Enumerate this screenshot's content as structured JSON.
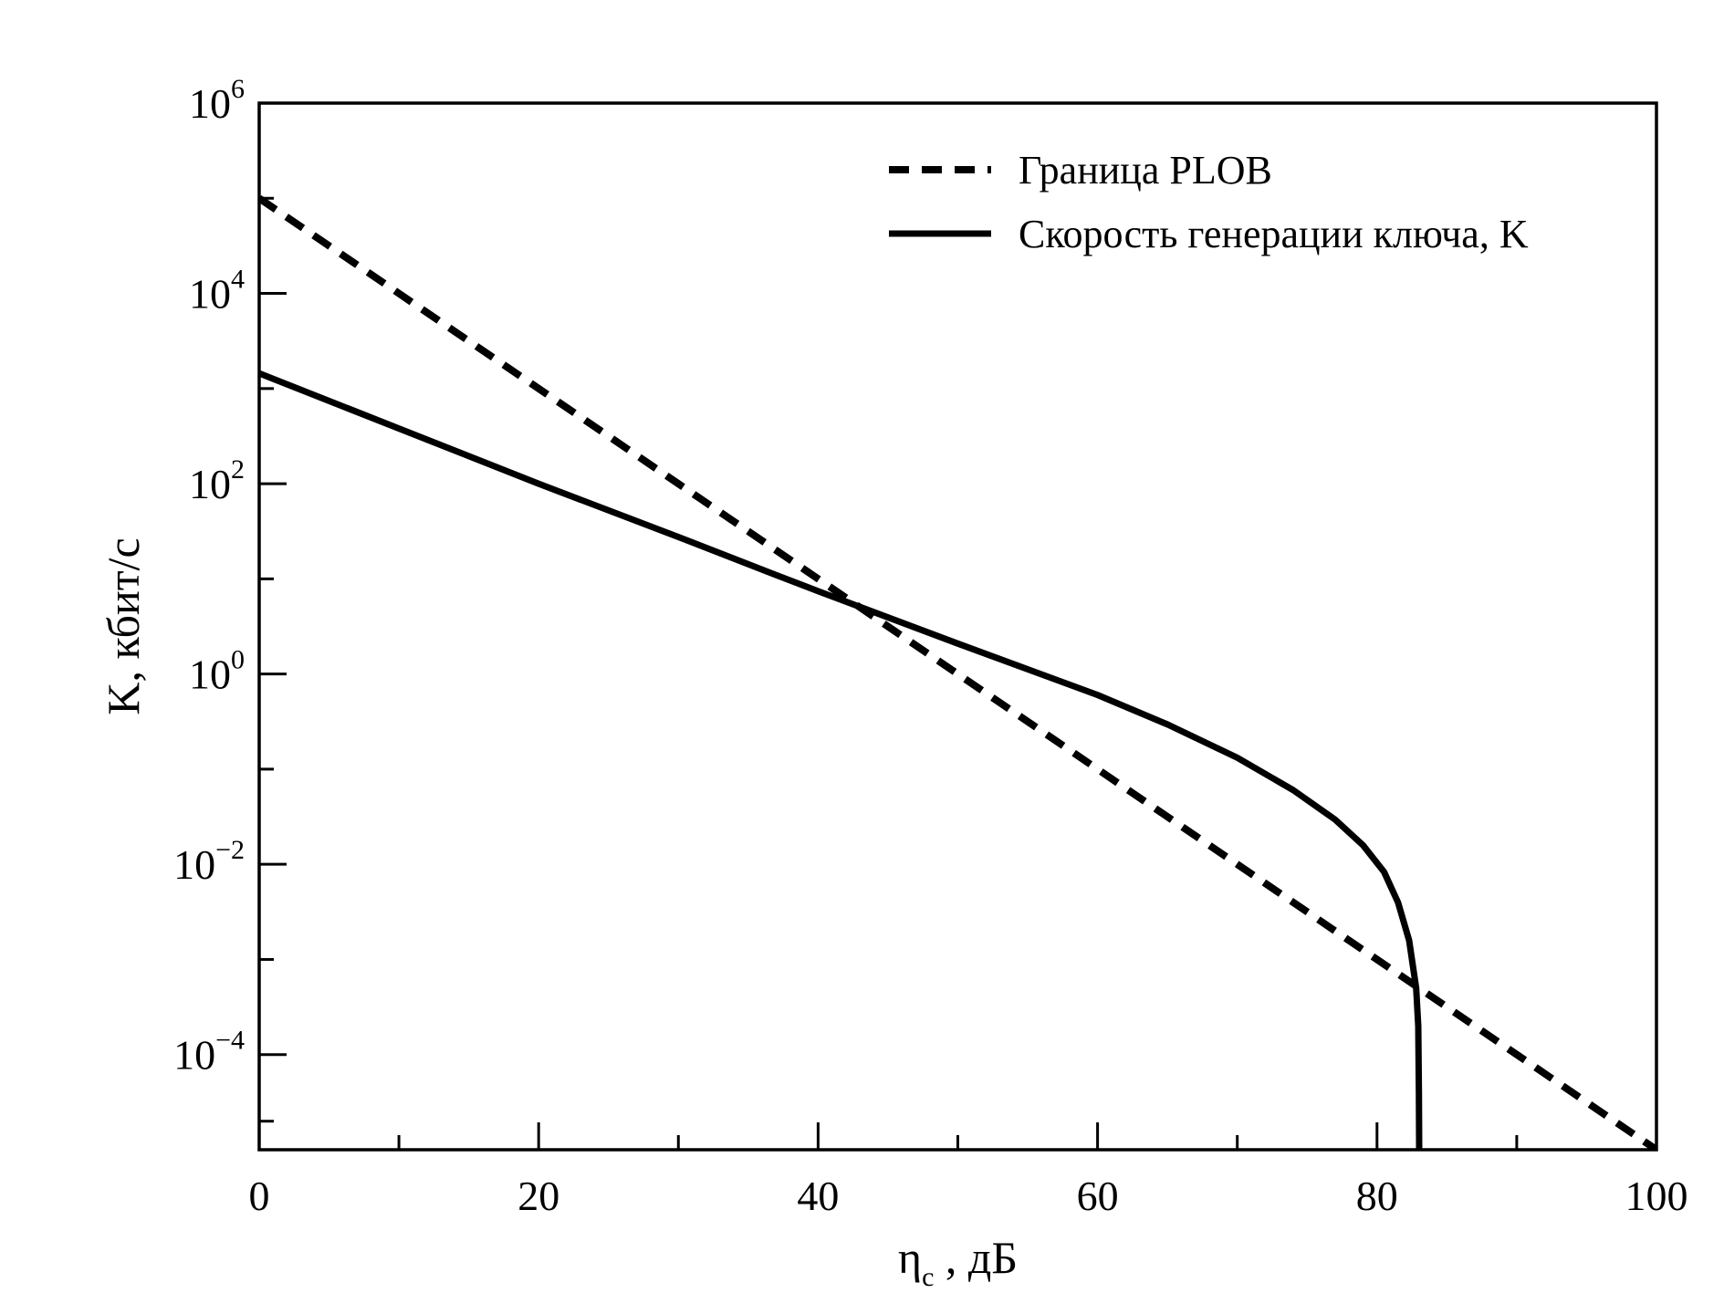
{
  "chart_data": {
    "type": "line",
    "title": "",
    "xlabel": {
      "main": "η",
      "sub": "c",
      "rest": " , дБ"
    },
    "ylabel": "K, кбит/с",
    "xlim": [
      0,
      100
    ],
    "ylim_log10": [
      -5,
      6
    ],
    "y_scale": "log",
    "grid": false,
    "legend_position": "top-right",
    "x_ticks": [
      {
        "value": 0,
        "label": "0"
      },
      {
        "value": 20,
        "label": "20"
      },
      {
        "value": 40,
        "label": "40"
      },
      {
        "value": 60,
        "label": "60"
      },
      {
        "value": 80,
        "label": "80"
      },
      {
        "value": 100,
        "label": "100"
      }
    ],
    "x_minor_ticks": [
      10,
      30,
      50,
      70,
      90
    ],
    "y_ticks": [
      {
        "exp": -4,
        "base": "10",
        "sup": "−4"
      },
      {
        "exp": -2,
        "base": "10",
        "sup": "−2"
      },
      {
        "exp": 0,
        "base": "10",
        "sup": "0"
      },
      {
        "exp": 2,
        "base": "10",
        "sup": "2"
      },
      {
        "exp": 4,
        "base": "10",
        "sup": "4"
      },
      {
        "exp": 6,
        "base": "10",
        "sup": "6"
      }
    ],
    "y_minor_ticks": [
      -4.7,
      -3,
      -1,
      1,
      3,
      5
    ],
    "series": [
      {
        "name": "Граница PLOB",
        "style": "dashed",
        "color": "#000000",
        "x": [
          0,
          100
        ],
        "y_log10": [
          5.0,
          -5.0
        ]
      },
      {
        "name": "Скорость генерации ключа, K",
        "style": "solid",
        "color": "#000000",
        "x": [
          0,
          10,
          20,
          30,
          37,
          40,
          50,
          60,
          65,
          70,
          74,
          77,
          79,
          80.5,
          81.5,
          82.3,
          82.8,
          82.95,
          83.0,
          83.02
        ],
        "y_log10": [
          3.16,
          2.58,
          2.0,
          1.44,
          1.04,
          0.87,
          0.32,
          -0.22,
          -0.53,
          -0.88,
          -1.22,
          -1.53,
          -1.8,
          -2.08,
          -2.4,
          -2.8,
          -3.3,
          -3.7,
          -4.4,
          -5.0
        ]
      }
    ]
  }
}
